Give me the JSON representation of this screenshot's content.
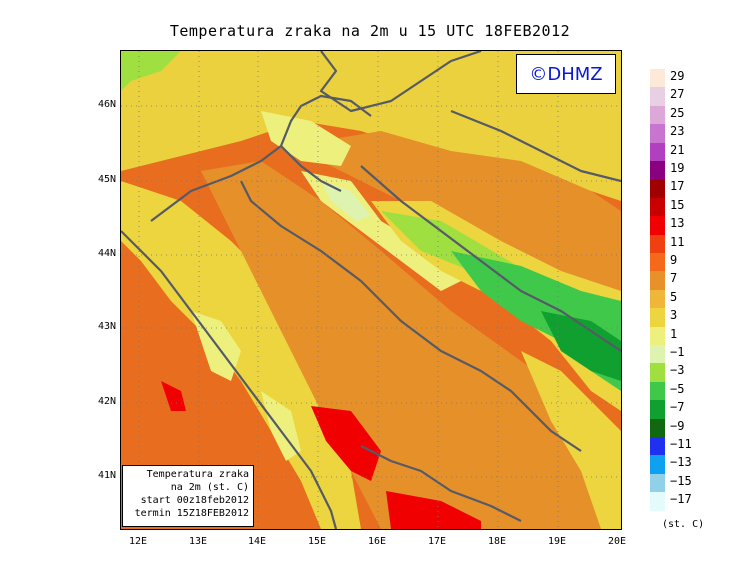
{
  "title": "Temperatura zraka na 2m u 15 UTC 18FEB2012",
  "logo": "©DHMZ",
  "info_box": {
    "line1": "Temperatura zraka",
    "line2": "na 2m (st. C)",
    "line3": "start 00z18feb2012",
    "line4": "termin 15Z18FEB2012"
  },
  "lat_labels": [
    "46N",
    "45N",
    "44N",
    "43N",
    "42N",
    "41N"
  ],
  "lon_labels": [
    "12E",
    "13E",
    "14E",
    "15E",
    "16E",
    "17E",
    "18E",
    "19E",
    "20E"
  ],
  "legend": {
    "labels": [
      "29",
      "27",
      "25",
      "23",
      "21",
      "19",
      "17",
      "15",
      "13",
      "11",
      "9",
      "7",
      "5",
      "3",
      "1",
      "−1",
      "−3",
      "−5",
      "−7",
      "−9",
      "−11",
      "−13",
      "−15",
      "−17"
    ],
    "colors": [
      "#fce9da",
      "#e8cfe3",
      "#dca8d8",
      "#c775cf",
      "#b040c0",
      "#8a0080",
      "#a00000",
      "#c80000",
      "#f00000",
      "#f04010",
      "#f46a1a",
      "#e8902a",
      "#f0b63a",
      "#ecd53e",
      "#eef07e",
      "#dff3b0",
      "#9fe040",
      "#40c84a",
      "#10a030",
      "#106810",
      "#2030f0",
      "#10a0f0",
      "#90d0e8",
      "#e4fbfc"
    ],
    "units": "(st. C)"
  },
  "map": {
    "background": "#e6731e",
    "coast_color": "#555a66"
  }
}
